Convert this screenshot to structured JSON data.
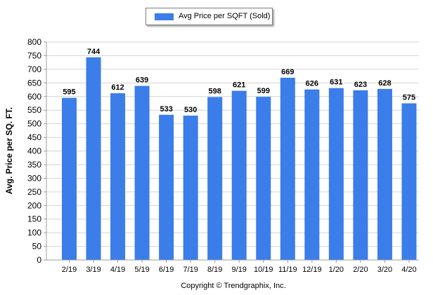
{
  "legend": {
    "label": "Avg Price per SQFT (Sold)"
  },
  "colors": {
    "bar": "#3b7de9",
    "grid": "#d4d4d4",
    "axis": "#9c9c9c"
  },
  "copyright": "Copyright © Trendgraphix, Inc.",
  "chart_data": {
    "type": "bar",
    "title": "",
    "xlabel": "",
    "ylabel": "Avg. Price per SQ. FT.",
    "ylim": [
      0,
      800
    ],
    "yticks": [
      0,
      50,
      100,
      150,
      200,
      250,
      300,
      350,
      400,
      450,
      500,
      550,
      600,
      650,
      700,
      750,
      800
    ],
    "grid": true,
    "legend_position": "top-center",
    "categories": [
      "2/19",
      "3/19",
      "4/19",
      "5/19",
      "6/19",
      "7/19",
      "8/19",
      "9/19",
      "10/19",
      "11/19",
      "12/19",
      "1/20",
      "2/20",
      "3/20",
      "4/20"
    ],
    "series": [
      {
        "name": "Avg Price per SQFT (Sold)",
        "values": [
          595,
          744,
          612,
          639,
          533,
          530,
          598,
          621,
          599,
          669,
          626,
          631,
          623,
          628,
          575
        ]
      }
    ]
  }
}
